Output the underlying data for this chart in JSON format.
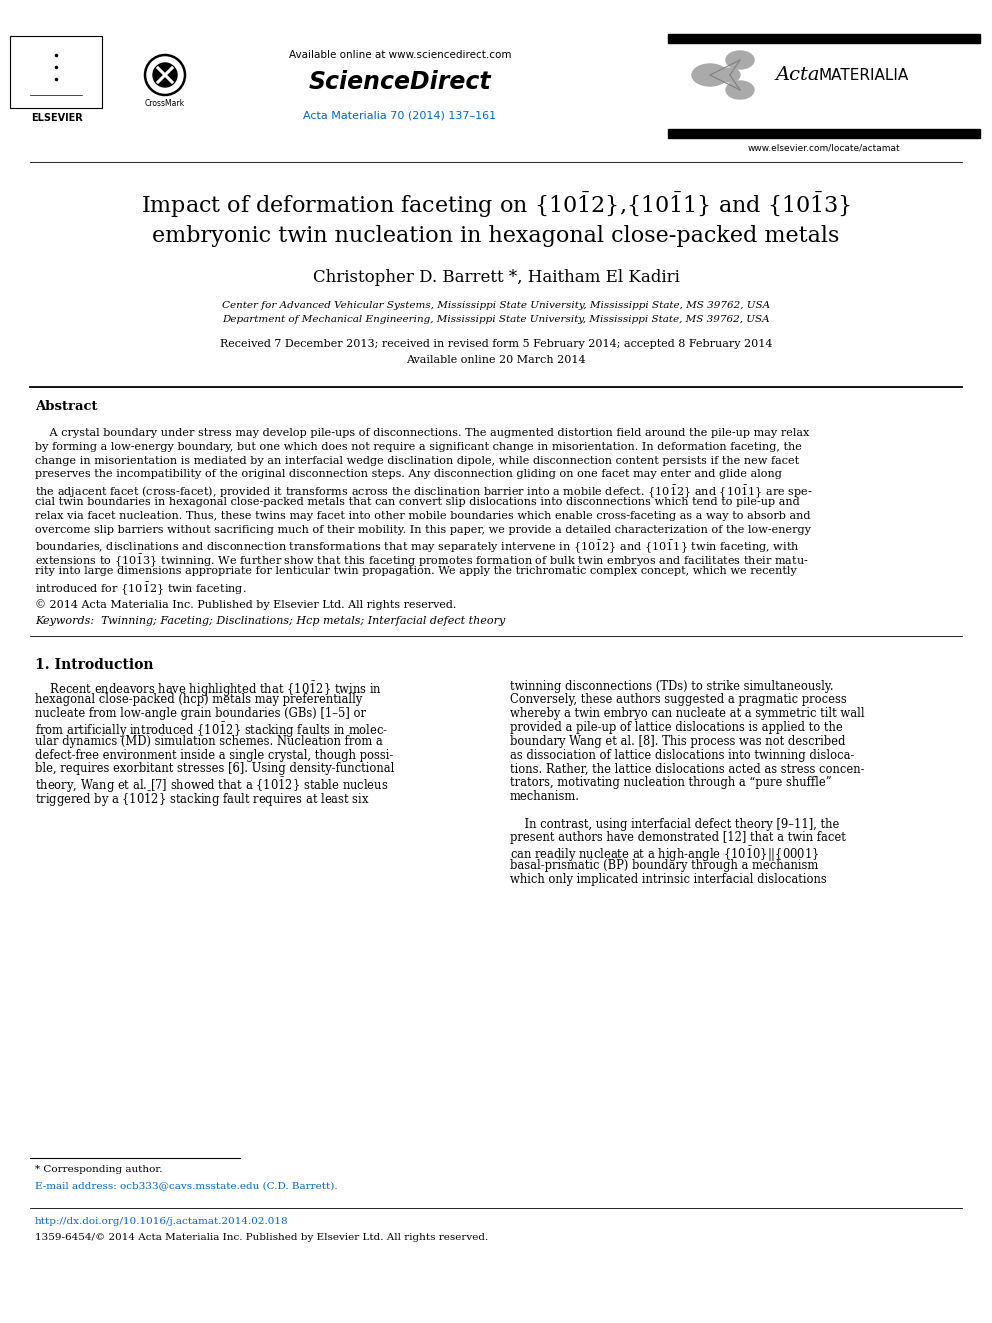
{
  "page_width": 9.92,
  "page_height": 13.23,
  "background": "#ffffff",
  "elsevier_text": "ELSEVIER",
  "available_online": "Available online at www.sciencedirect.com",
  "sciencedirect": "ScienceDirect",
  "journal_ref": "Acta Materialia 70 (2014) 137–161",
  "journal_url": "www.elsevier.com/locate/actamat",
  "acta_italic": "Acta",
  "acta_plain": "MATERIALIA",
  "title_line2": "embryonic twin nucleation in hexagonal close-packed metals",
  "authors": "Christopher D. Barrett *, Haitham El Kadiri",
  "affiliation1": "Center for Advanced Vehicular Systems, Mississippi State University, Mississippi State, MS 39762, USA",
  "affiliation2": "Department of Mechanical Engineering, Mississippi State University, Mississippi State, MS 39762, USA",
  "received": "Received 7 December 2013; received in revised form 5 February 2014; accepted 8 February 2014",
  "available": "Available online 20 March 2014",
  "abstract_title": "Abstract",
  "copyright": "© 2014 Acta Materialia Inc. Published by Elsevier Ltd. All rights reserved.",
  "keywords": "Twinning; Faceting; Disclinations; Hcp metals; Interfacial defect theory",
  "intro_heading": "1. Introduction",
  "footnote_author": "* Corresponding author.",
  "doi": "http://dx.doi.org/10.1016/j.actamat.2014.02.018",
  "issn": "1359-6454/© 2014 Acta Materialia Inc. Published by Elsevier Ltd. All rights reserved.",
  "link_color": "#0066cc",
  "text_color": "#000000"
}
